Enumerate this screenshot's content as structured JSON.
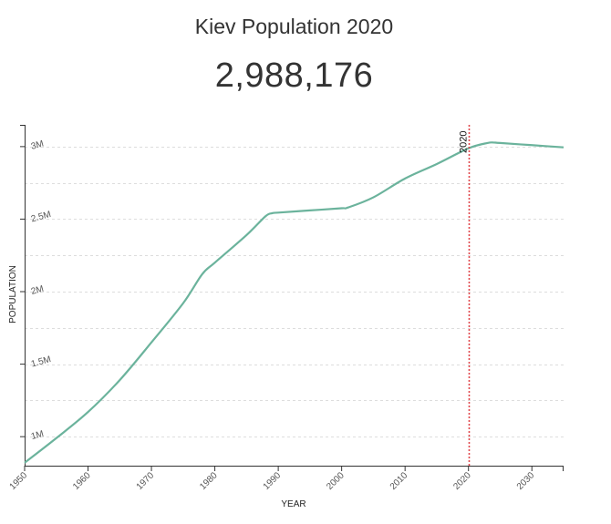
{
  "header": {
    "title": "Kiev Population 2020",
    "current_value": "2,988,176"
  },
  "colors": {
    "line": "#6bb39c",
    "marker": "#e0474c",
    "grid": "#dddddd",
    "axis": "#333333"
  },
  "chart_data": {
    "type": "line",
    "title": "Kiev Population 2020",
    "xlabel": "YEAR",
    "ylabel": "POPULATION",
    "xlim": [
      1950,
      2035
    ],
    "ylim": [
      800000,
      3150000
    ],
    "x_ticks": [
      1950,
      1960,
      1970,
      1980,
      1990,
      2000,
      2010,
      2020,
      2030
    ],
    "x_tick_labels": [
      "1950",
      "1960",
      "1970",
      "1980",
      "1990",
      "2000",
      "2010",
      "2020",
      "2030"
    ],
    "y_ticks": [
      1000000,
      1500000,
      2000000,
      2500000,
      3000000
    ],
    "y_tick_labels": [
      "1M",
      "1.5M",
      "2M",
      "2.5M",
      "3M"
    ],
    "grid": true,
    "marker": {
      "x": 2020,
      "label": "2020"
    },
    "series": [
      {
        "x": [
          1950,
          1955,
          1960,
          1965,
          1970,
          1975,
          1978,
          1980,
          1985,
          1988,
          1989,
          1990,
          1995,
          2000,
          2001,
          2005,
          2010,
          2015,
          2020,
          2023,
          2024,
          2025,
          2030,
          2035
        ],
        "values": [
          820000,
          990000,
          1170000,
          1390000,
          1650000,
          1920000,
          2120000,
          2200000,
          2390000,
          2520000,
          2540000,
          2545000,
          2560000,
          2575000,
          2580000,
          2650000,
          2780000,
          2880000,
          2988176,
          3025000,
          3028000,
          3025000,
          3010000,
          2995000
        ]
      }
    ]
  }
}
